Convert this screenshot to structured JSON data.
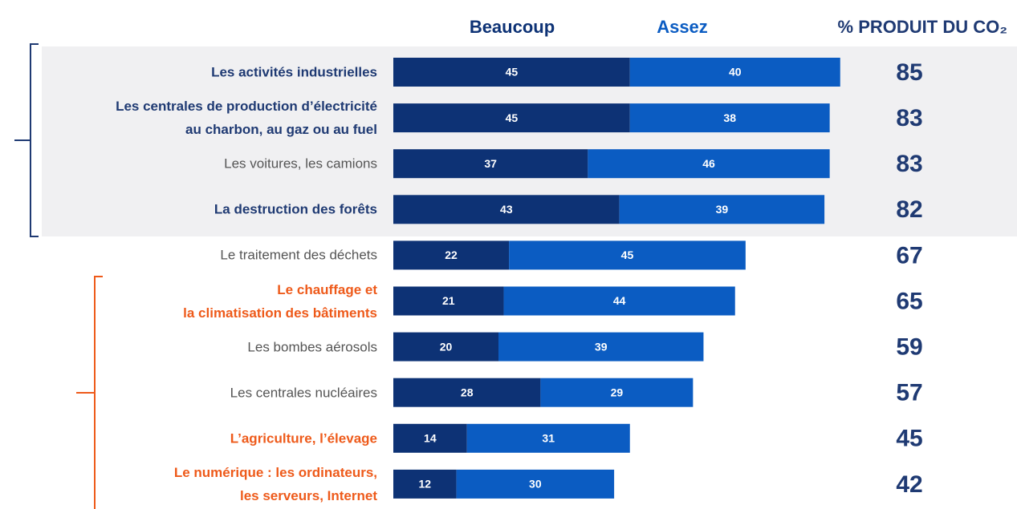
{
  "chart_data": {
    "type": "stacked-bar-horizontal",
    "categories": [
      "Les activités industrielles",
      "Les centrales de production d’électricité\nau charbon, au gaz ou au fuel",
      "Les voitures, les camions",
      "La destruction des forêts",
      "Le traitement des déchets",
      "Le chauffage et\nla climatisation des bâtiments",
      "Les bombes aérosols",
      "Les centrales nucléaires",
      "L’agriculture, l’élevage",
      "Le numérique : les ordinateurs,\nles serveurs, Internet"
    ],
    "category_colors": [
      "#1f3a73",
      "#1f3a73",
      "#555555",
      "#1f3a73",
      "#555555",
      "#ee5a1a",
      "#555555",
      "#555555",
      "#ee5a1a",
      "#ee5a1a"
    ],
    "category_weights": [
      "bold",
      "bold",
      "normal",
      "bold",
      "normal",
      "bold",
      "normal",
      "normal",
      "bold",
      "bold"
    ],
    "series": [
      {
        "name": "Beaucoup",
        "color": "#0d3275",
        "values": [
          45,
          45,
          37,
          43,
          22,
          21,
          20,
          28,
          14,
          12
        ]
      },
      {
        "name": "Assez",
        "color": "#0b5cc2",
        "values": [
          40,
          38,
          46,
          39,
          45,
          44,
          39,
          29,
          31,
          30
        ]
      }
    ],
    "totals_title": "% PRODUIT DU CO₂",
    "totals": [
      85,
      83,
      83,
      82,
      67,
      65,
      59,
      57,
      45,
      42
    ]
  }
}
